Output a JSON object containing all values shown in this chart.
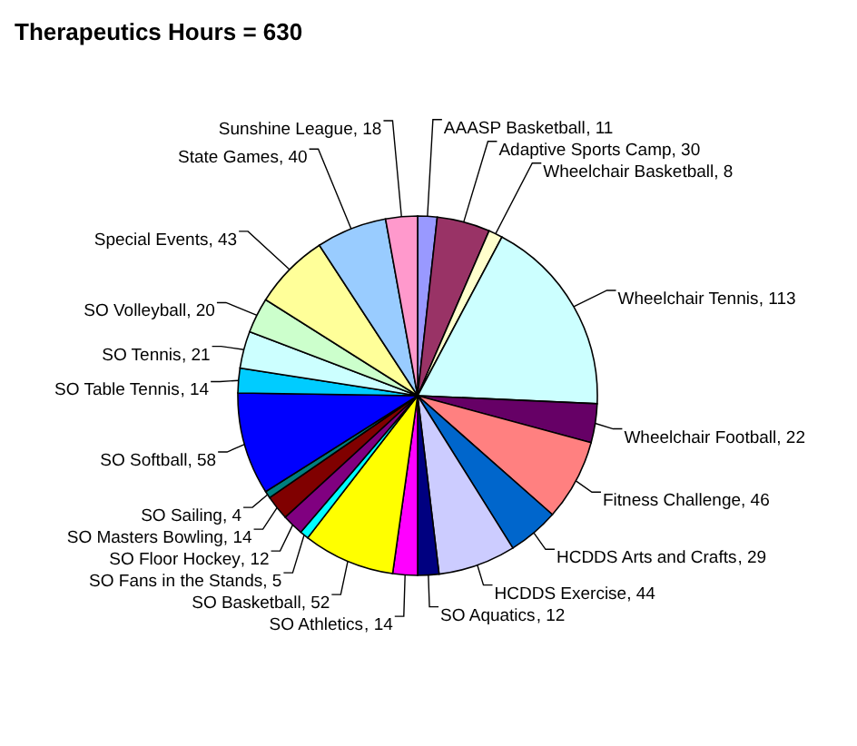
{
  "chart_data": {
    "type": "pie",
    "title": "Therapeutics Hours = 630",
    "categories": [
      "AAASP Basketball",
      "Adaptive Sports Camp",
      "Wheelchair Basketball",
      "Wheelchair Tennis",
      "Wheelchair Football",
      "Fitness Challenge",
      "HCDDS Arts and Crafts",
      "HCDDS Exercise",
      "SO Aquatics",
      "SO Athletics",
      "SO Basketball",
      "SO Fans in the Stands",
      "SO Floor Hockey",
      "SO Masters Bowling",
      "SO Sailing",
      "SO Softball",
      "SO Table Tennis",
      "SO Tennis",
      "SO Volleyball",
      "Special Events",
      "State Games",
      "Sunshine League"
    ],
    "values": [
      11,
      30,
      8,
      113,
      22,
      46,
      29,
      44,
      12,
      14,
      52,
      5,
      12,
      14,
      4,
      58,
      14,
      21,
      20,
      43,
      40,
      18
    ],
    "colors": [
      "#9999ff",
      "#993366",
      "#ffffcc",
      "#ccffff",
      "#660066",
      "#ff8080",
      "#0066cc",
      "#ccccff",
      "#000080",
      "#ff00ff",
      "#ffff00",
      "#00ffff",
      "#800080",
      "#800000",
      "#008080",
      "#0000ff",
      "#00ccff",
      "#ccffff",
      "#ccffcc",
      "#ffff99",
      "#99ccff",
      "#ff99cc"
    ],
    "value_labels": [
      ", 11",
      ", 30",
      ", 8",
      ", 113",
      ", 22",
      ", 46",
      ", 29",
      ", 44",
      ", 12",
      ", 14",
      ", 52",
      ", 5",
      ", 12",
      ", 14",
      ", 4",
      ", 58",
      ", 14",
      ", 21",
      ", 20",
      ", 43",
      ", 40",
      ", 18"
    ]
  }
}
